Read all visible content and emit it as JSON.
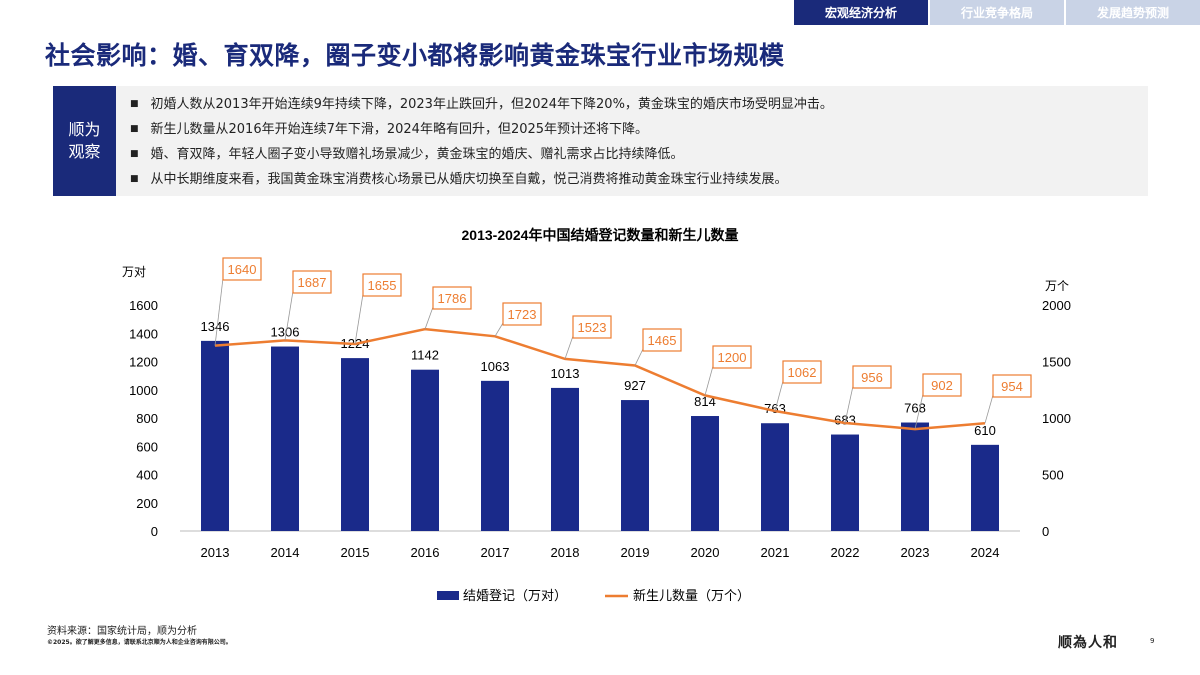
{
  "tabs": [
    {
      "label": "宏观经济分析",
      "active": true
    },
    {
      "label": "行业竞争格局",
      "active": false
    },
    {
      "label": "发展趋势预测",
      "active": false
    }
  ],
  "title": "社会影响：婚、育双降，圈子变小都将影响黄金珠宝行业市场规模",
  "observation": {
    "label": "顺为观察",
    "bullets": [
      "初婚人数从2013年开始连续9年持续下降，2023年止跌回升，但2024年下降20%，黄金珠宝的婚庆市场受明显冲击。",
      "新生儿数量从2016年开始连续7年下滑，2024年略有回升，但2025年预计还将下降。",
      "婚、育双降，年轻人圈子变小导致赠礼场景减少，黄金珠宝的婚庆、赠礼需求占比持续降低。",
      "从中长期维度来看，我国黄金珠宝消费核心场景已从婚庆切换至自戴，悦己消费将推动黄金珠宝行业持续发展。"
    ]
  },
  "chart_data": {
    "type": "bar+line",
    "title": "2013-2024年中国结婚登记数量和新生儿数量",
    "ylabel_left": "万对",
    "ylabel_right": "万个",
    "ylim_left": [
      0,
      1600
    ],
    "ylim_right": [
      0,
      2000
    ],
    "yticks_left": [
      "0",
      "200",
      "400",
      "600",
      "800",
      "1000",
      "1200",
      "1400",
      "1600"
    ],
    "yticks_right": [
      "0",
      "500",
      "1000",
      "1500",
      "2000"
    ],
    "categories": [
      "2013",
      "2014",
      "2015",
      "2016",
      "2017",
      "2018",
      "2019",
      "2020",
      "2021",
      "2022",
      "2023",
      "2024"
    ],
    "series": [
      {
        "name": "结婚登记（万对）",
        "type": "bar",
        "axis": "left",
        "color": "#1a2a8a",
        "values": [
          1346,
          1306,
          1224,
          1142,
          1063,
          1013,
          927,
          814,
          763,
          683,
          768,
          610
        ]
      },
      {
        "name": "新生儿数量（万个）",
        "type": "line",
        "axis": "right",
        "color": "#ed7d31",
        "values": [
          1640,
          1687,
          1655,
          1786,
          1723,
          1523,
          1465,
          1200,
          1062,
          956,
          902,
          954
        ]
      }
    ],
    "legend": "bottom",
    "grid": false
  },
  "footer": {
    "source": "资料来源：国家统计局，顺为分析",
    "copyright": "©2025。欲了解更多信息，请联系北京顺为人和企业咨询有限公司。",
    "logo": "顺為人和",
    "page": "9"
  }
}
